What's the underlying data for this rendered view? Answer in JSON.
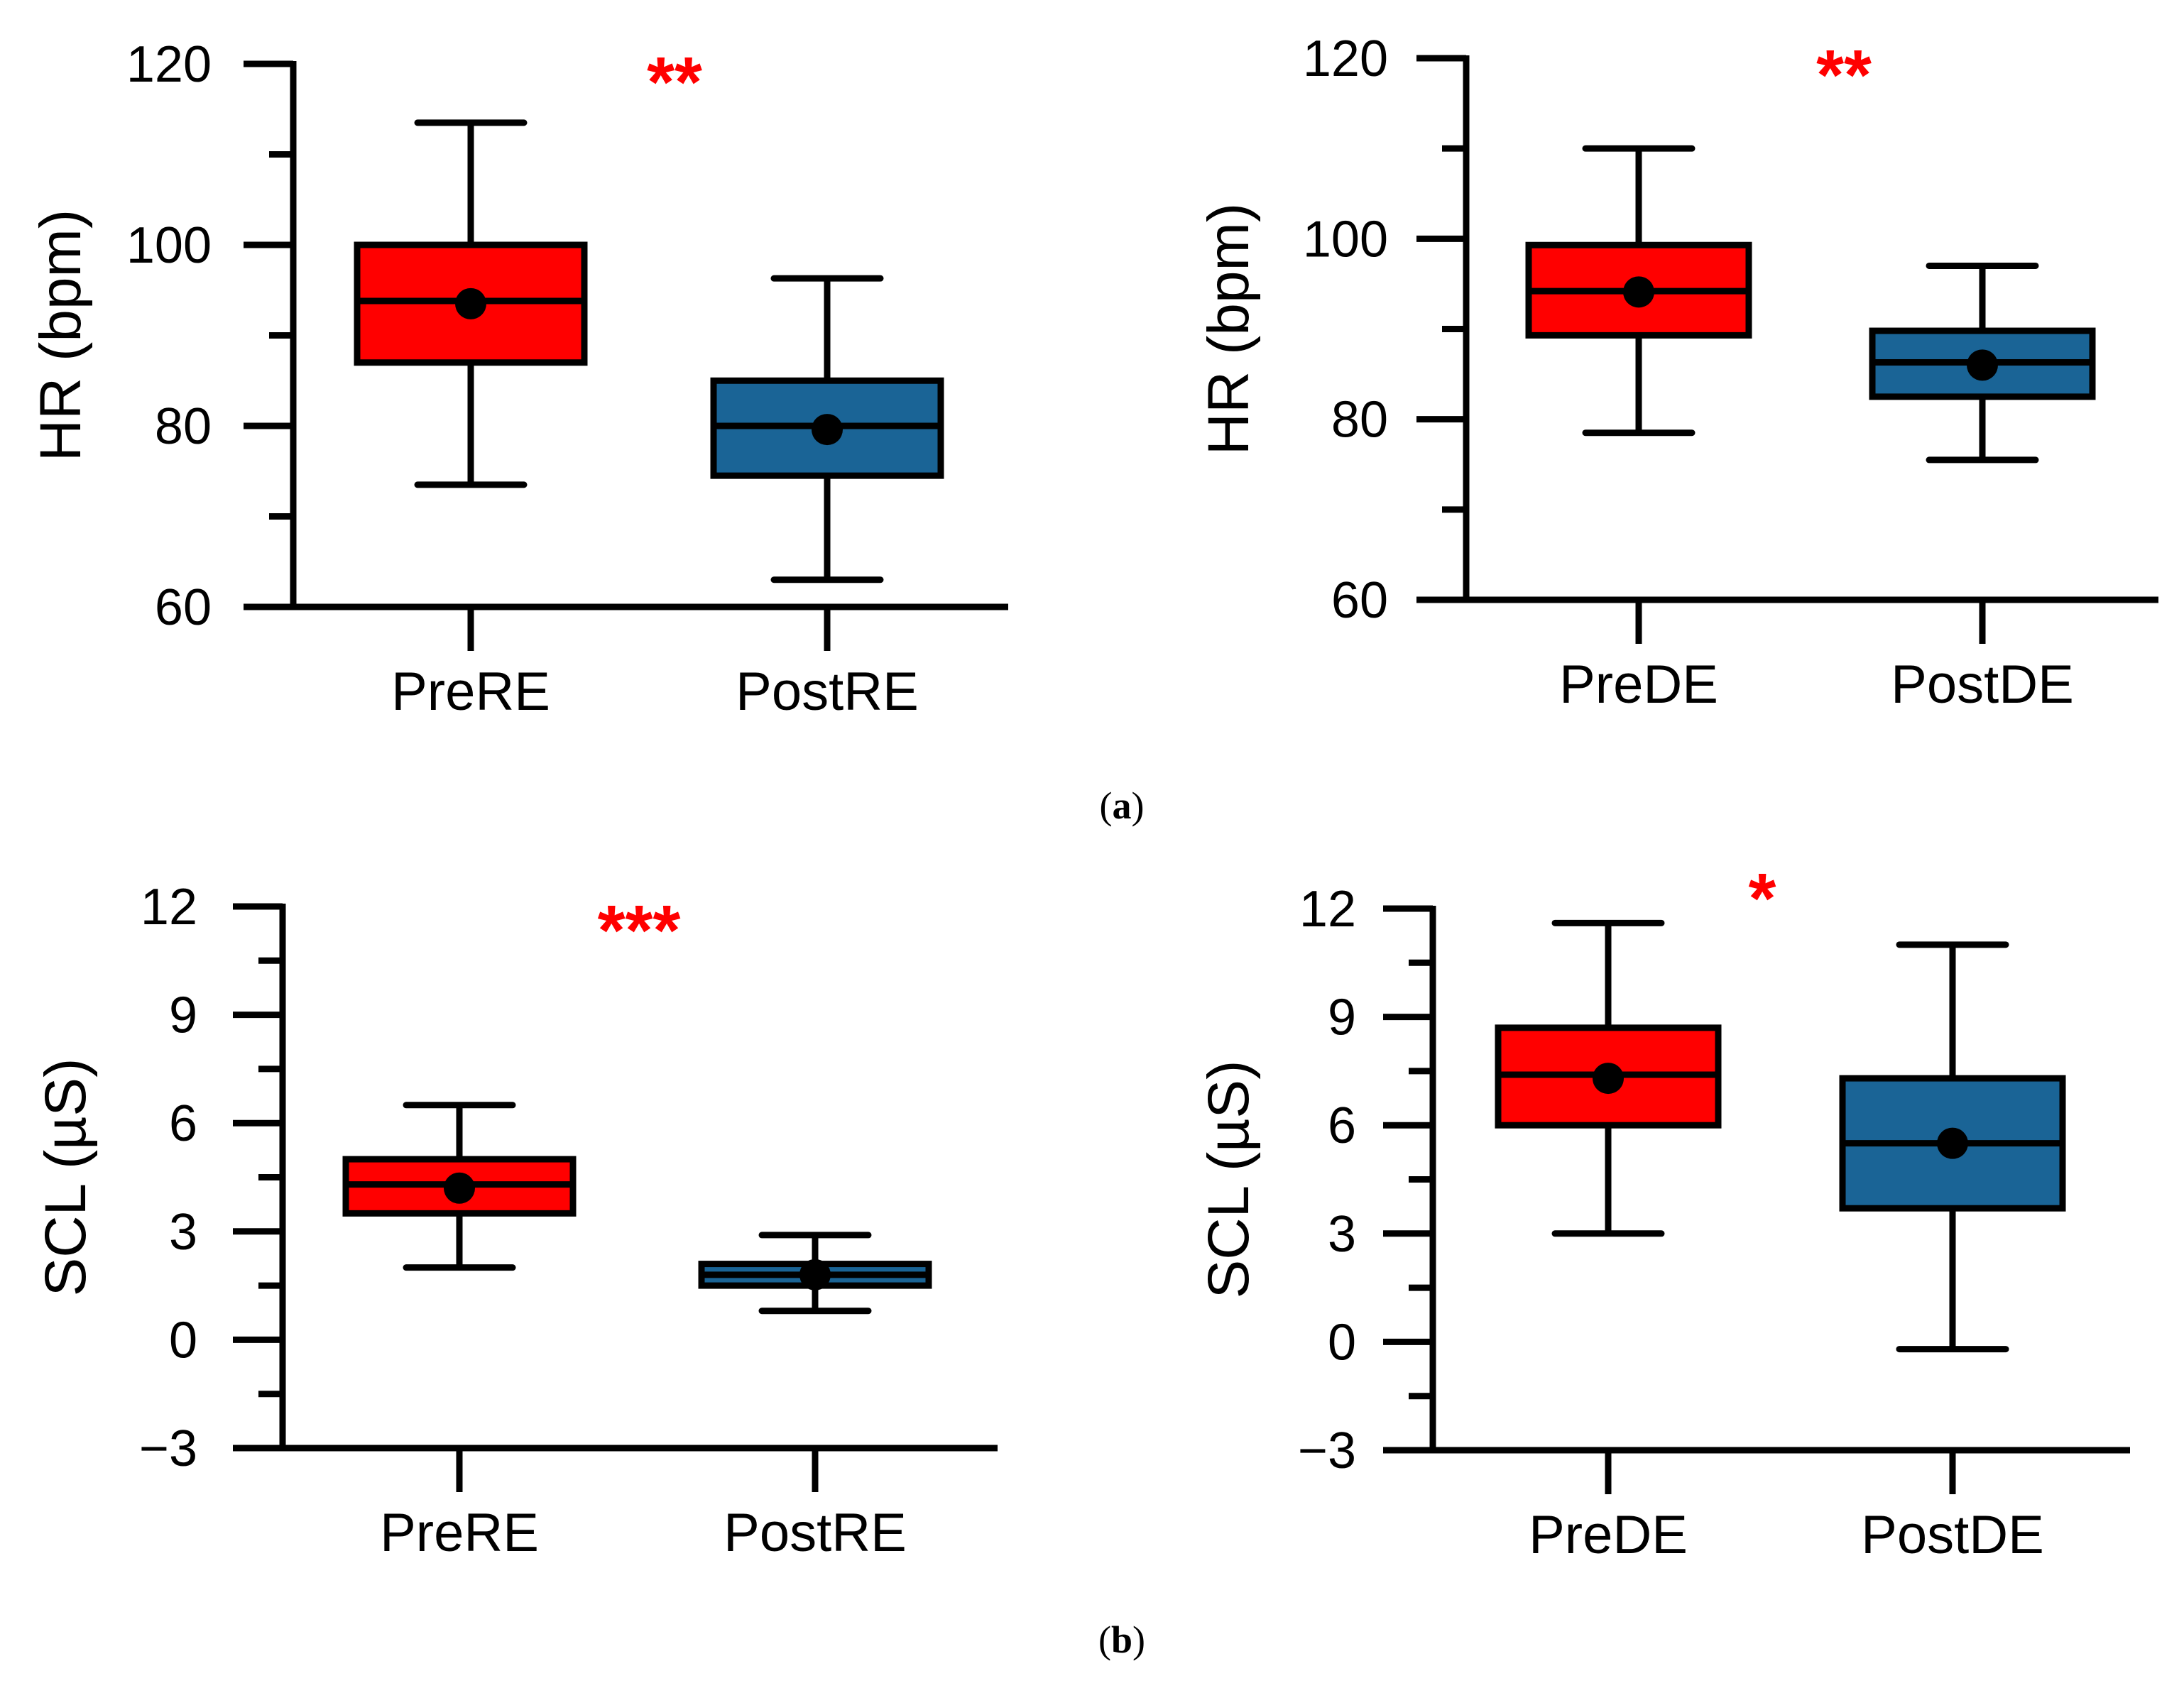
{
  "chart_data": [
    {
      "type": "box",
      "ylabel": "HR (bpm)",
      "ylim": [
        60,
        120
      ],
      "yticks": [
        "60",
        "80",
        "100",
        "120"
      ],
      "categories": [
        "PreRE",
        "PostRE"
      ],
      "series": [
        {
          "name": "PreRE",
          "min": 73.5,
          "q1": 87,
          "median": 93.8,
          "q3": 100,
          "max": 113.5,
          "mean": 93.5,
          "color": "#ff0000"
        },
        {
          "name": "PostRE",
          "min": 63,
          "q1": 74.5,
          "median": 80,
          "q3": 85,
          "max": 96.3,
          "mean": 79.6,
          "color": "#1a6496"
        }
      ],
      "significance": "**"
    },
    {
      "type": "box",
      "ylabel": "HR (bpm)",
      "ylim": [
        60,
        120
      ],
      "yticks": [
        "60",
        "80",
        "100",
        "120"
      ],
      "categories": [
        "PreDE",
        "PostDE"
      ],
      "series": [
        {
          "name": "PreDE",
          "min": 78.5,
          "q1": 89.3,
          "median": 94.2,
          "q3": 99.3,
          "max": 110,
          "mean": 94.1,
          "color": "#ff0000"
        },
        {
          "name": "PostDE",
          "min": 75.5,
          "q1": 82.5,
          "median": 86.3,
          "q3": 89.8,
          "max": 97,
          "mean": 86,
          "color": "#1a6496"
        }
      ],
      "significance": "**"
    },
    {
      "type": "box",
      "ylabel": "SCL (µS)",
      "ylim": [
        -3,
        12
      ],
      "yticks": [
        "−3",
        "0",
        "3",
        "6",
        "9",
        "12"
      ],
      "categories": [
        "PreRE",
        "PostRE"
      ],
      "series": [
        {
          "name": "PreRE",
          "min": 2,
          "q1": 3.5,
          "median": 4.3,
          "q3": 5,
          "max": 6.5,
          "mean": 4.2,
          "color": "#ff0000"
        },
        {
          "name": "PostRE",
          "min": 0.8,
          "q1": 1.5,
          "median": 1.8,
          "q3": 2.1,
          "max": 2.9,
          "mean": 1.8,
          "color": "#1a6496"
        }
      ],
      "significance": "***"
    },
    {
      "type": "box",
      "ylabel": "SCL (µS)",
      "ylim": [
        -3,
        12
      ],
      "yticks": [
        "−3",
        "0",
        "3",
        "6",
        "9",
        "12"
      ],
      "categories": [
        "PreDE",
        "PostDE"
      ],
      "series": [
        {
          "name": "PreDE",
          "min": 3,
          "q1": 6,
          "median": 7.4,
          "q3": 8.7,
          "max": 11.6,
          "mean": 7.3,
          "color": "#ff0000"
        },
        {
          "name": "PostDE",
          "min": -0.2,
          "q1": 3.7,
          "median": 5.5,
          "q3": 7.3,
          "max": 11,
          "mean": 5.5,
          "color": "#1a6496"
        }
      ],
      "significance": "*"
    }
  ],
  "captions": {
    "a": {
      "open": "(",
      "letter": "a",
      "close": ")"
    },
    "b": {
      "open": "(",
      "letter": "b",
      "close": ")"
    }
  }
}
